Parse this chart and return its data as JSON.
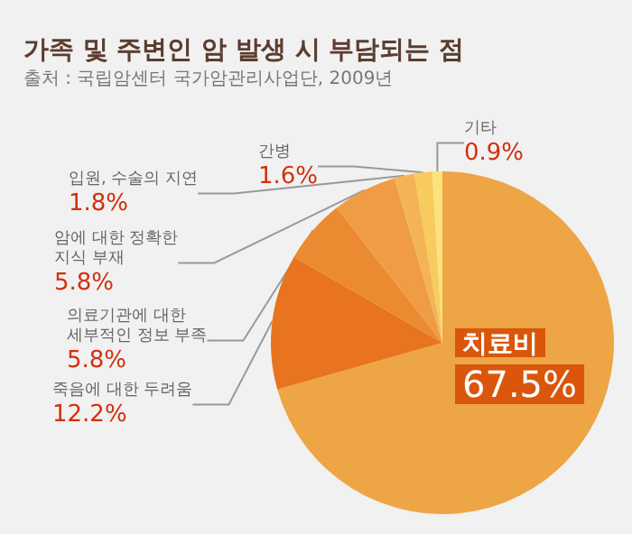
{
  "chart_data": {
    "type": "pie",
    "title": "가족 및 주변인 암 발생 시 부담되는 점",
    "subtitle": "출처 : 국립암센터 국가암관리사업단, 2009년",
    "categories": [
      "치료비",
      "죽음에 대한 두려움",
      "의료기관에 대한 세부적인 정보 부족",
      "암에 대한 정확한 지식 부재",
      "입원, 수술의 지연",
      "간병",
      "기타"
    ],
    "values": [
      67.5,
      12.2,
      5.8,
      5.8,
      1.8,
      1.6,
      0.9
    ],
    "value_labels": [
      "67.5%",
      "12.2%",
      "5.8%",
      "5.8%",
      "1.8%",
      "1.6%",
      "0.9%"
    ],
    "colors": [
      "#eea545",
      "#e8741f",
      "#ec8a32",
      "#f09c44",
      "#f4b455",
      "#f8cb5e",
      "#fbe27c"
    ],
    "legend": false
  }
}
